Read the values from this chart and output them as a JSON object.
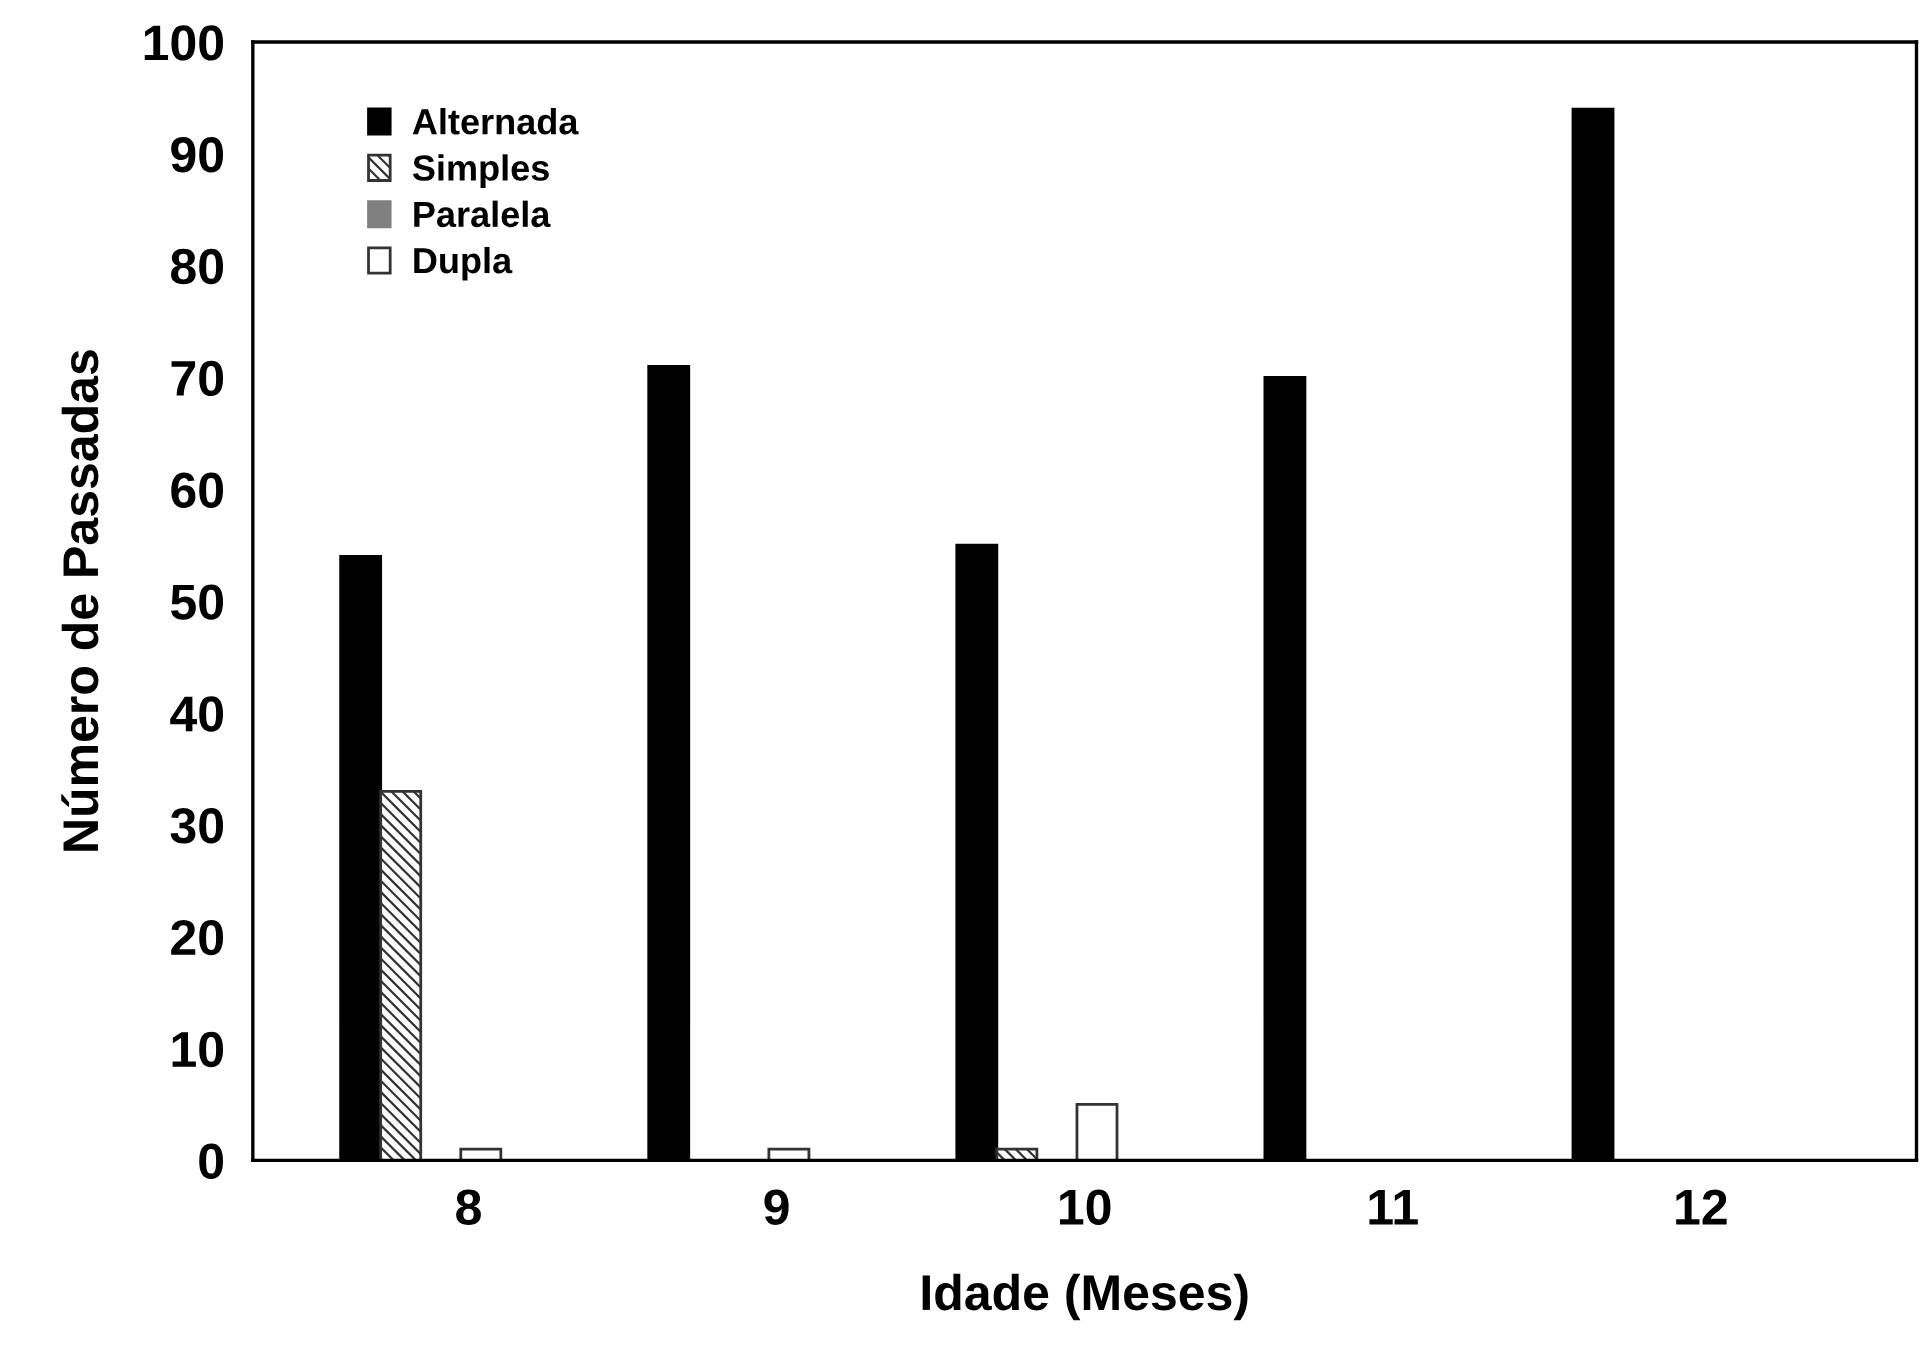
{
  "chart_data": {
    "type": "bar",
    "xlabel": "Idade (Meses)",
    "ylabel": "Número de Passadas",
    "categories": [
      "8",
      "9",
      "10",
      "11",
      "12"
    ],
    "series": [
      {
        "name": "Alternada",
        "color": "#000000",
        "values": [
          54,
          71,
          55,
          70,
          94
        ]
      },
      {
        "name": "Simples",
        "color": "#333333",
        "values": [
          33,
          0,
          1,
          0,
          0
        ]
      },
      {
        "name": "Paralela",
        "color": "#808080",
        "values": [
          0,
          0,
          0,
          0,
          0
        ]
      },
      {
        "name": "Dupla",
        "color": "#ffffff",
        "values": [
          1,
          1,
          5,
          0,
          0
        ]
      }
    ],
    "ylim": [
      0,
      100
    ],
    "yticks": [
      0,
      10,
      20,
      30,
      40,
      50,
      60,
      70,
      80,
      90,
      100
    ],
    "grid": false,
    "legend": "top left"
  }
}
